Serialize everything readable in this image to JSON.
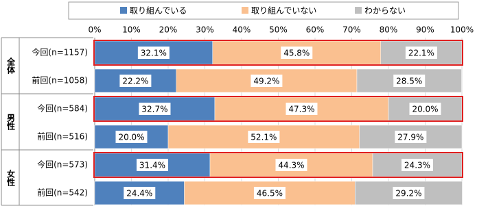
{
  "chart_data": {
    "type": "stacked-bar-horizontal",
    "groups": [
      "全体",
      "男性",
      "女性"
    ],
    "categories": [
      "今回(n=1157)",
      "前回(n=1058)",
      "今回(n=584)",
      "前回(n=516)",
      "今回(n=573)",
      "前回(n=542)"
    ],
    "series": [
      {
        "name": "取り組んでいる",
        "color": "#4f81bd",
        "values": [
          32.1,
          22.2,
          32.7,
          20.0,
          31.4,
          24.4
        ],
        "value_labels": [
          "32.1%",
          "22.2%",
          "32.7%",
          "20.0%",
          "31.4%",
          "24.4%"
        ]
      },
      {
        "name": "取り組んでいない",
        "color": "#fac090",
        "values": [
          45.8,
          49.2,
          47.3,
          52.1,
          44.3,
          46.5
        ],
        "value_labels": [
          "45.8%",
          "49.2%",
          "47.3%",
          "52.1%",
          "44.3%",
          "46.5%"
        ]
      },
      {
        "name": "わからない",
        "color": "#bfbfbf",
        "values": [
          22.1,
          28.5,
          20.0,
          27.9,
          24.3,
          29.2
        ],
        "value_labels": [
          "22.1%",
          "28.5%",
          "20.0%",
          "27.9%",
          "24.3%",
          "29.2%"
        ]
      }
    ],
    "xlim": [
      0,
      100
    ],
    "xticks": [
      {
        "value": 0,
        "label": "0%"
      },
      {
        "value": 10,
        "label": "10%"
      },
      {
        "value": 20,
        "label": "20%"
      },
      {
        "value": 30,
        "label": "30%"
      },
      {
        "value": 40,
        "label": "40%"
      },
      {
        "value": 50,
        "label": "50%"
      },
      {
        "value": 60,
        "label": "60%"
      },
      {
        "value": 70,
        "label": "70%"
      },
      {
        "value": 80,
        "label": "80%"
      },
      {
        "value": 90,
        "label": "90%"
      },
      {
        "value": 100,
        "label": "100%"
      }
    ],
    "grid": true
  }
}
